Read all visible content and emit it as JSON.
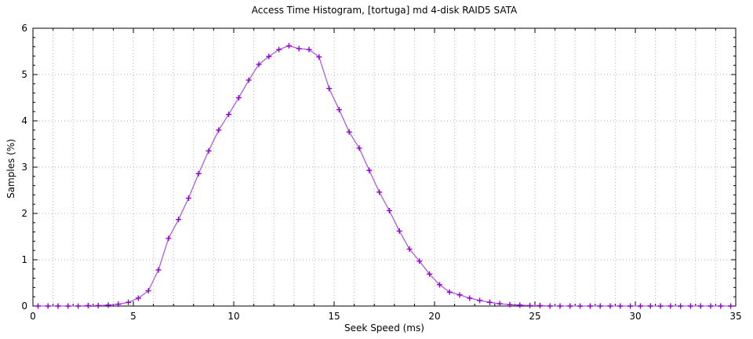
{
  "title": "Access Time Histogram, [tortuga] md 4-disk RAID5 SATA",
  "colors": {
    "background": "#ffffff",
    "axis": "#000000",
    "grid": "#b0b0b0",
    "series_line": "#ad5fd6",
    "series_marker": "#9400d3",
    "text": "#000000"
  },
  "chart_data": {
    "type": "line",
    "title": "Access Time Histogram, [tortuga] md 4-disk RAID5 SATA",
    "xlabel": "Seek Speed (ms)",
    "ylabel": "Samples (%)",
    "xlim": [
      0,
      35
    ],
    "ylim": [
      0,
      6
    ],
    "x_major_ticks": [
      0,
      5,
      10,
      15,
      20,
      25,
      30,
      35
    ],
    "x_major_tick_labels": [
      "0",
      "5",
      "10",
      "15",
      "20",
      "25",
      "30",
      "35"
    ],
    "x_minor_step": 1,
    "y_major_ticks": [
      0,
      1,
      2,
      3,
      4,
      5,
      6
    ],
    "y_major_tick_labels": [
      "0",
      "1",
      "2",
      "3",
      "4",
      "5",
      "6"
    ],
    "y_minor_step": 0.2,
    "grid": "dotted, vertical every 1 ms, horizontal every 1 %",
    "legend_position": "none",
    "marker": "plus",
    "series": [
      {
        "name": "samples-percent",
        "x": [
          0.25,
          0.75,
          1.25,
          1.75,
          2.25,
          2.75,
          3.25,
          3.75,
          4.25,
          4.75,
          5.25,
          5.75,
          6.25,
          6.75,
          7.25,
          7.75,
          8.25,
          8.75,
          9.25,
          9.75,
          10.25,
          10.75,
          11.25,
          11.75,
          12.25,
          12.75,
          13.25,
          13.75,
          14.25,
          14.75,
          15.25,
          15.75,
          16.25,
          16.75,
          17.25,
          17.75,
          18.25,
          18.75,
          19.25,
          19.75,
          20.25,
          20.75,
          21.25,
          21.75,
          22.25,
          22.75,
          23.25,
          23.75,
          24.25,
          24.75,
          25.25,
          25.75,
          26.25,
          26.75,
          27.25,
          27.75,
          28.25,
          28.75,
          29.25,
          29.75,
          30.25,
          30.75,
          31.25,
          31.75,
          32.25,
          32.75,
          33.25,
          33.75,
          34.25,
          34.75
        ],
        "y": [
          0,
          0,
          0,
          0,
          0,
          0.01,
          0.01,
          0.02,
          0.04,
          0.08,
          0.17,
          0.33,
          0.78,
          1.46,
          1.87,
          2.33,
          2.86,
          3.35,
          3.8,
          4.14,
          4.5,
          4.88,
          5.22,
          5.39,
          5.54,
          5.62,
          5.56,
          5.54,
          5.38,
          4.7,
          4.24,
          3.76,
          3.41,
          2.93,
          2.46,
          2.06,
          1.62,
          1.23,
          0.97,
          0.69,
          0.46,
          0.3,
          0.24,
          0.17,
          0.12,
          0.08,
          0.05,
          0.03,
          0.02,
          0.01,
          0.01,
          0,
          0,
          0,
          0,
          0,
          0,
          0,
          0,
          0,
          0,
          0,
          0,
          0,
          0,
          0,
          0,
          0,
          0,
          0
        ]
      }
    ]
  }
}
